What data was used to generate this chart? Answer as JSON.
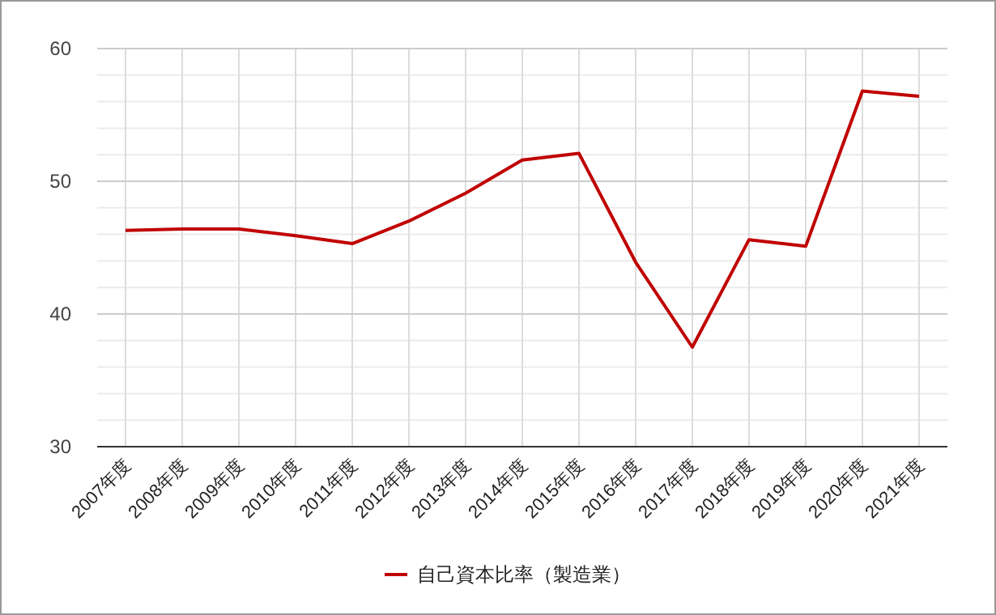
{
  "chart_data": {
    "type": "line",
    "categories": [
      "2007年度",
      "2008年度",
      "2009年度",
      "2010年度",
      "2011年度",
      "2012年度",
      "2013年度",
      "2014年度",
      "2015年度",
      "2016年度",
      "2017年度",
      "2018年度",
      "2019年度",
      "2020年度",
      "2021年度"
    ],
    "series": [
      {
        "name": "自己資本比率（製造業）",
        "color": "#c00000",
        "values": [
          46.3,
          46.4,
          46.4,
          45.9,
          45.3,
          47.0,
          49.1,
          51.6,
          52.1,
          43.9,
          37.5,
          45.6,
          45.1,
          56.8,
          56.4
        ]
      }
    ],
    "ylim": [
      30,
      60
    ],
    "yticks": [
      30,
      40,
      50,
      60
    ],
    "grid": true,
    "legend": "bottom",
    "marker": "none",
    "line_style": "solid"
  }
}
